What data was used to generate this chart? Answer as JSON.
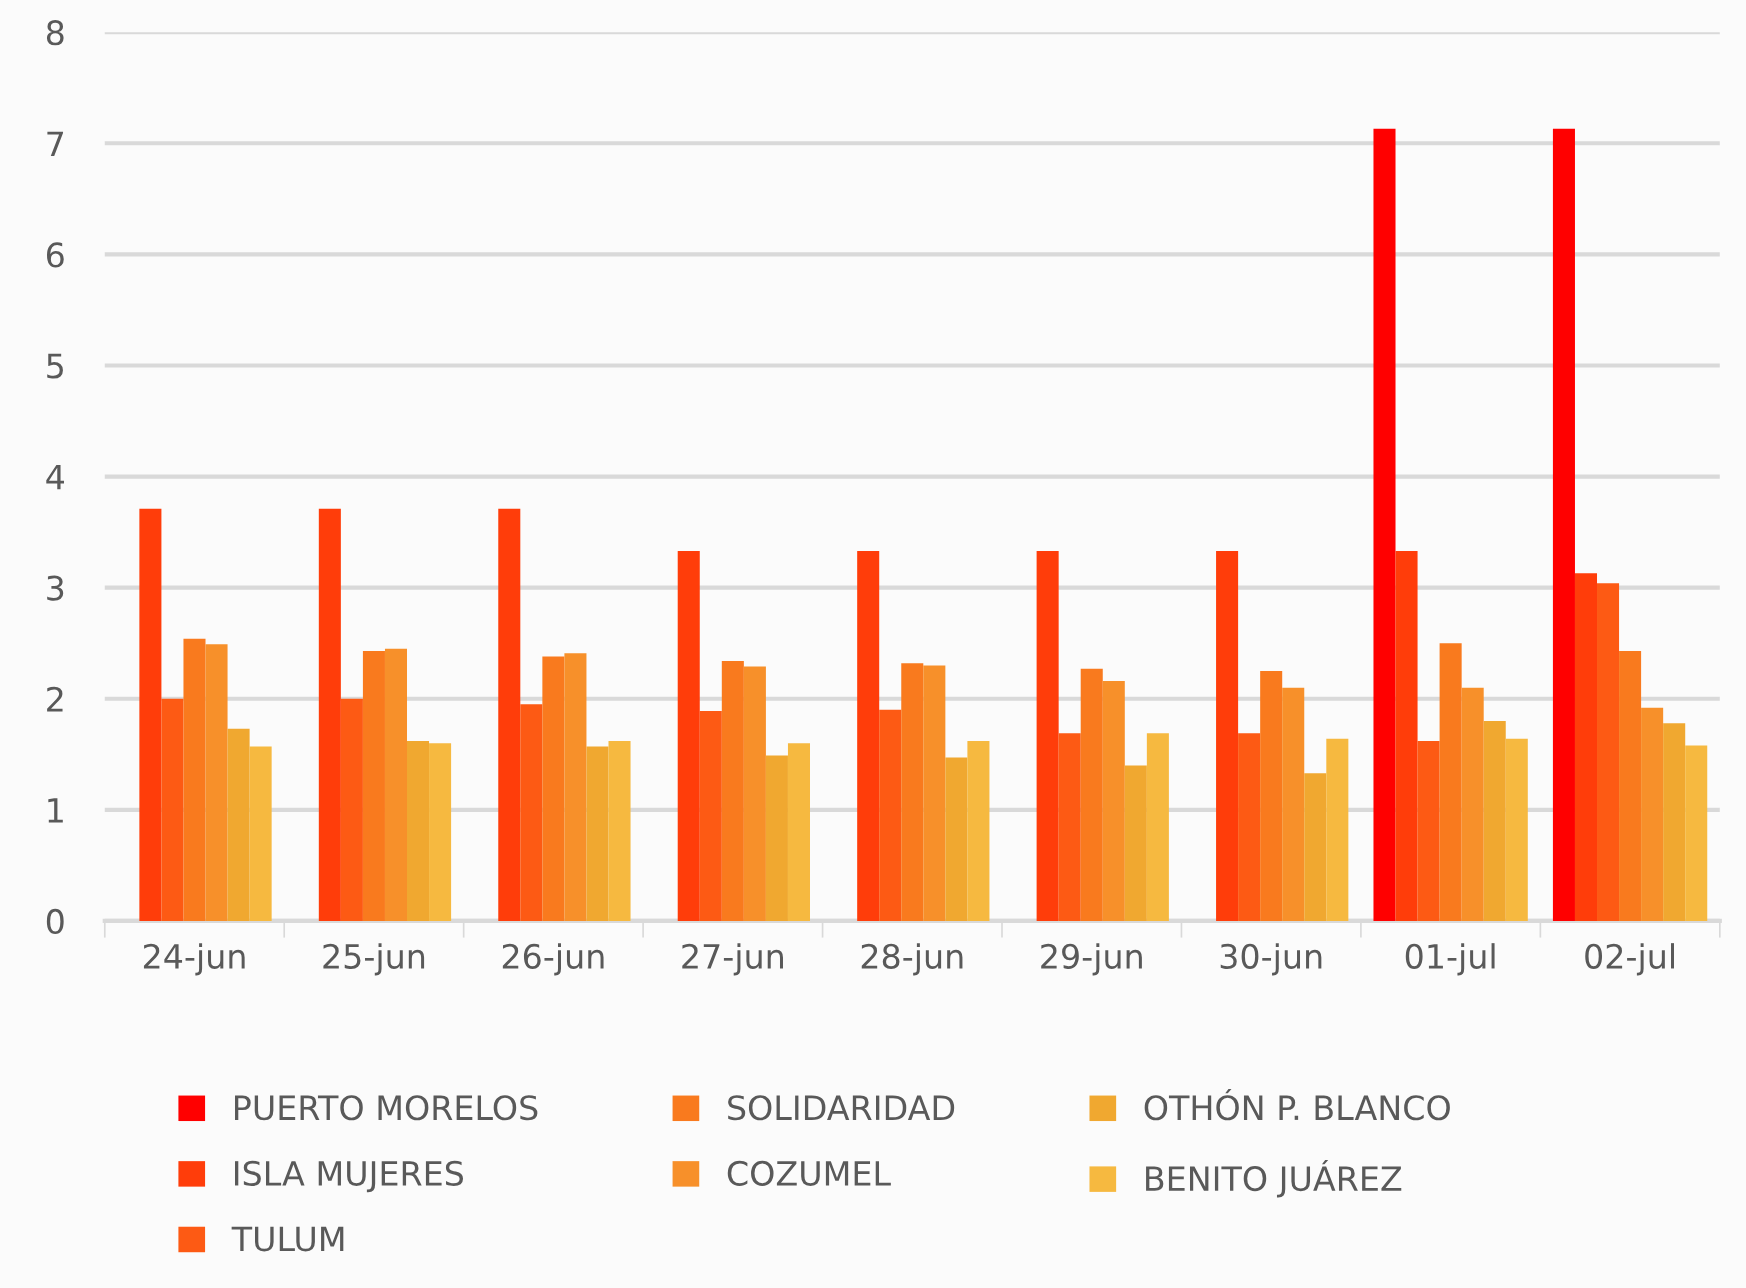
{
  "chart_data": {
    "type": "bar",
    "categories": [
      "24-jun",
      "25-jun",
      "26-jun",
      "27-jun",
      "28-jun",
      "29-jun",
      "30-jun",
      "01-jul",
      "02-jul"
    ],
    "series": [
      {
        "name": "PUERTO MORELOS",
        "color": "#ff0000",
        "values": [
          null,
          null,
          null,
          null,
          null,
          null,
          null,
          7.13,
          7.13
        ]
      },
      {
        "name": "ISLA MUJERES",
        "color": "#ff3d0a",
        "values": [
          3.71,
          3.71,
          3.71,
          3.33,
          3.33,
          3.33,
          3.33,
          3.33,
          3.13
        ]
      },
      {
        "name": "TULUM",
        "color": "#fd5a14",
        "values": [
          2.0,
          2.0,
          1.95,
          1.89,
          1.9,
          1.69,
          1.69,
          1.62,
          3.04
        ]
      },
      {
        "name": "SOLIDARIDAD",
        "color": "#f97a1e",
        "values": [
          2.54,
          2.43,
          2.38,
          2.34,
          2.32,
          2.27,
          2.25,
          2.5,
          2.43
        ]
      },
      {
        "name": "COZUMEL",
        "color": "#f7902a",
        "values": [
          2.49,
          2.45,
          2.41,
          2.29,
          2.3,
          2.16,
          2.1,
          2.1,
          1.92
        ]
      },
      {
        "name": "OTHÓN P. BLANCO",
        "color": "#f0a830",
        "values": [
          1.73,
          1.62,
          1.57,
          1.49,
          1.47,
          1.4,
          1.33,
          1.8,
          1.78
        ]
      },
      {
        "name": "BENITO JUÁREZ",
        "color": "#f6b940",
        "values": [
          1.57,
          1.6,
          1.62,
          1.6,
          1.62,
          1.69,
          1.64,
          1.64,
          1.58
        ]
      }
    ],
    "ylim": [
      0,
      8
    ],
    "yticks": [
      0,
      1,
      2,
      3,
      4,
      5,
      6,
      7,
      8
    ],
    "grid": "y",
    "legend": "bottom"
  }
}
